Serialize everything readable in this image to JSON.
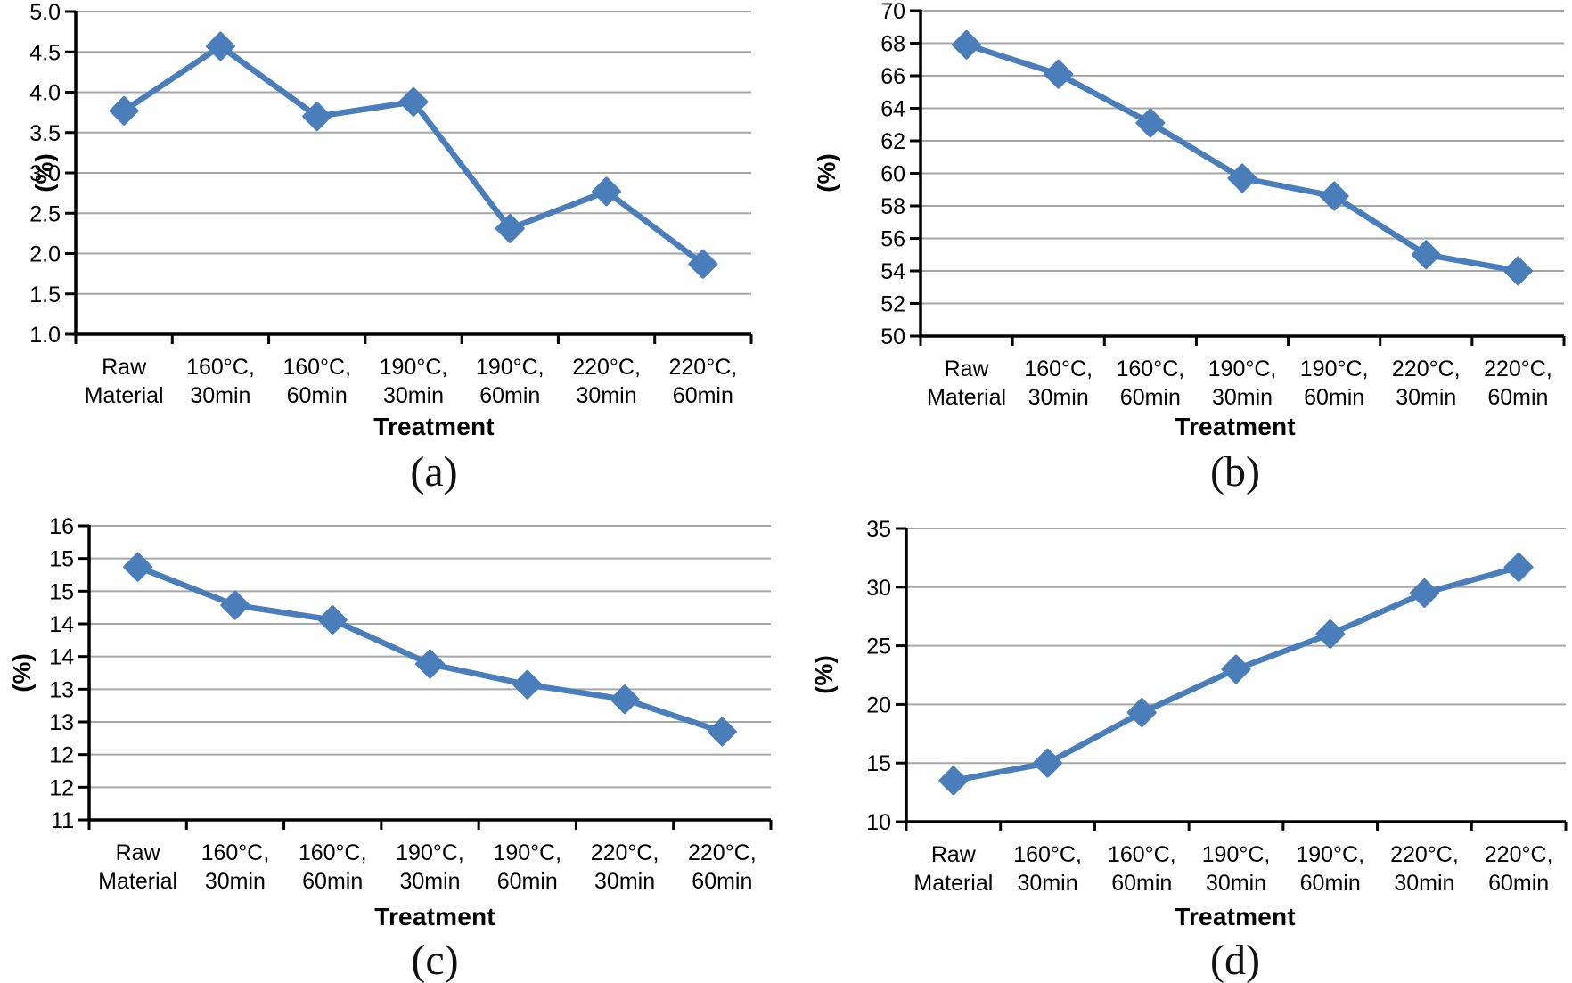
{
  "figure": {
    "description": "Four-panel line chart figure showing (%) versus heat treatment",
    "background": "#ffffff"
  },
  "colors": {
    "series": "#4a7ebb",
    "gridline": "#a6a6a6",
    "axis": "#000000",
    "text": "#000000"
  },
  "chart_data": [
    {
      "id": "a",
      "caption": "(a)",
      "type": "line",
      "marker": "diamond",
      "grid": "horizontal",
      "legend_position": "none",
      "xlabel": "Treatment",
      "ylabel": "(%)",
      "categories": [
        "Raw Material",
        "160°C, 30min",
        "160°C, 60min",
        "190°C, 30min",
        "190°C, 60min",
        "220°C, 30min",
        "220°C, 60min"
      ],
      "category_label_lines": [
        [
          "Raw",
          "Material"
        ],
        [
          "160°C,",
          "30min"
        ],
        [
          "160°C,",
          "60min"
        ],
        [
          "190°C,",
          "30min"
        ],
        [
          "190°C,",
          "60min"
        ],
        [
          "220°C,",
          "30min"
        ],
        [
          "220°C,",
          "60min"
        ]
      ],
      "values": [
        3.77,
        4.57,
        3.7,
        3.88,
        2.31,
        2.77,
        1.87
      ],
      "ylim": [
        1.0,
        5.0
      ],
      "ytick_labels_top_to_bottom": [
        "5.0",
        "4.5",
        "4.0",
        "3.5",
        "3.0",
        "2.5",
        "2.0",
        "1.5",
        "1.0"
      ]
    },
    {
      "id": "b",
      "caption": "(b)",
      "type": "line",
      "marker": "diamond",
      "grid": "horizontal",
      "legend_position": "none",
      "xlabel": "Treatment",
      "ylabel": "(%)",
      "categories": [
        "Raw Material",
        "160°C, 30min",
        "160°C, 60min",
        "190°C, 30min",
        "190°C, 60min",
        "220°C, 30min",
        "220°C, 60min"
      ],
      "category_label_lines": [
        [
          "Raw",
          "Material"
        ],
        [
          "160°C,",
          "30min"
        ],
        [
          "160°C,",
          "60min"
        ],
        [
          "190°C,",
          "30min"
        ],
        [
          "190°C,",
          "60min"
        ],
        [
          "220°C,",
          "30min"
        ],
        [
          "220°C,",
          "60min"
        ]
      ],
      "values": [
        67.9,
        66.1,
        63.1,
        59.7,
        58.6,
        55.0,
        54.0
      ],
      "ylim": [
        50,
        70
      ],
      "ytick_labels_top_to_bottom": [
        "70",
        "68",
        "66",
        "64",
        "62",
        "60",
        "58",
        "56",
        "54",
        "52",
        "50"
      ]
    },
    {
      "id": "c",
      "caption": "(c)",
      "type": "line",
      "marker": "diamond",
      "grid": "horizontal",
      "legend_position": "none",
      "xlabel": "Treatment",
      "ylabel": "(%)",
      "categories": [
        "Raw Material",
        "160°C, 30min",
        "160°C, 60min",
        "190°C, 30min",
        "190°C, 60min",
        "220°C, 30min",
        "220°C, 60min"
      ],
      "category_label_lines": [
        [
          "Raw",
          "Material"
        ],
        [
          "160°C,",
          "30min"
        ],
        [
          "160°C,",
          "60min"
        ],
        [
          "190°C,",
          "30min"
        ],
        [
          "190°C,",
          "60min"
        ],
        [
          "220°C,",
          "30min"
        ],
        [
          "220°C,",
          "60min"
        ]
      ],
      "values": [
        15.3,
        14.65,
        14.4,
        13.65,
        13.3,
        13.05,
        12.5
      ],
      "ylim": [
        11,
        16
      ],
      "ytick_labels_top_to_bottom": [
        "16",
        "15",
        "15",
        "14",
        "14",
        "13",
        "13",
        "12",
        "12",
        "11"
      ]
    },
    {
      "id": "d",
      "caption": "(d)",
      "type": "line",
      "marker": "diamond",
      "grid": "horizontal",
      "legend_position": "none",
      "xlabel": "Treatment",
      "ylabel": "(%)",
      "categories": [
        "Raw Material",
        "160°C, 30min",
        "160°C, 60min",
        "190°C, 30min",
        "190°C, 60min",
        "220°C, 30min",
        "220°C, 60min"
      ],
      "category_label_lines": [
        [
          "Raw",
          "Material"
        ],
        [
          "160°C,",
          "30min"
        ],
        [
          "160°C,",
          "60min"
        ],
        [
          "190°C,",
          "30min"
        ],
        [
          "190°C,",
          "60min"
        ],
        [
          "220°C,",
          "30min"
        ],
        [
          "220°C,",
          "60min"
        ]
      ],
      "values": [
        13.5,
        15.0,
        19.3,
        23.0,
        26.0,
        29.5,
        31.7
      ],
      "ylim": [
        10,
        35
      ],
      "ytick_labels_top_to_bottom": [
        "35",
        "30",
        "25",
        "20",
        "15",
        "10"
      ]
    }
  ]
}
